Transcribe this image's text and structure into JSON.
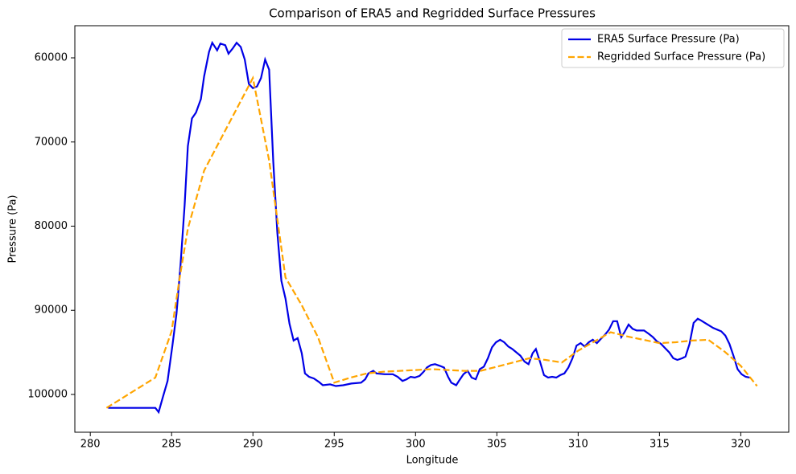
{
  "chart_data": {
    "type": "line",
    "title": "Comparison of ERA5 and Regridded Surface Pressures",
    "x_label": "Longitude",
    "y_label": "Pressure (Pa)",
    "xlim": [
      279.05,
      322.95
    ],
    "ylim": [
      104490,
      56180
    ],
    "xticks": [
      280,
      285,
      290,
      295,
      300,
      305,
      310,
      315,
      320
    ],
    "yticks": [
      60000,
      70000,
      80000,
      90000,
      100000
    ],
    "legend": "upper right",
    "series": [
      {
        "name": "ERA5 Surface Pressure (Pa)",
        "color": "#0000e6",
        "dash": "solid",
        "x": [
          281.1,
          282,
          283,
          284,
          284.2,
          284.45,
          284.75,
          285.05,
          285.3,
          285.55,
          285.8,
          286,
          286.25,
          286.5,
          286.8,
          287,
          287.3,
          287.5,
          287.8,
          288,
          288.3,
          288.5,
          288.75,
          289,
          289.25,
          289.5,
          289.75,
          290,
          290.25,
          290.5,
          290.75,
          291,
          291.25,
          291.5,
          291.75,
          292,
          292.25,
          292.5,
          292.75,
          293,
          293.2,
          293.45,
          293.75,
          294.05,
          294.3,
          294.75,
          295.1,
          295.55,
          296.05,
          296.65,
          296.9,
          297.1,
          297.4,
          297.6,
          298.1,
          298.6,
          298.9,
          299.2,
          299.45,
          299.7,
          299.95,
          300.25,
          300.5,
          300.7,
          300.95,
          301.2,
          301.5,
          301.75,
          302,
          302.2,
          302.5,
          302.7,
          302.95,
          303.2,
          303.45,
          303.7,
          303.95,
          304.2,
          304.45,
          304.7,
          304.95,
          305.2,
          305.45,
          305.7,
          305.95,
          306.2,
          306.45,
          306.7,
          306.95,
          307.2,
          307.4,
          307.65,
          307.9,
          308.15,
          308.4,
          308.65,
          308.9,
          309.15,
          309.4,
          309.65,
          309.9,
          310.15,
          310.4,
          310.65,
          310.9,
          311.15,
          311.4,
          311.65,
          311.9,
          312.15,
          312.4,
          312.65,
          312.85,
          313.1,
          313.35,
          313.6,
          314.05,
          314.35,
          314.6,
          314.85,
          315.1,
          315.35,
          315.6,
          315.85,
          316.1,
          316.4,
          316.6,
          316.85,
          317.1,
          317.35,
          317.55,
          317.8,
          318.05,
          318.3,
          318.55,
          318.8,
          319.05,
          319.3,
          319.55,
          319.8,
          320.05,
          320.3,
          320.55
        ],
        "values": [
          101600,
          101600,
          101600,
          101600,
          102100,
          100400,
          98400,
          94200,
          90400,
          84600,
          77500,
          70500,
          67200,
          66500,
          64900,
          62200,
          59300,
          58200,
          59100,
          58300,
          58500,
          59500,
          58900,
          58200,
          58700,
          60200,
          63100,
          63600,
          63400,
          62400,
          60200,
          61400,
          72300,
          80800,
          86500,
          88600,
          91600,
          93600,
          93300,
          95100,
          97500,
          97900,
          98100,
          98500,
          98900,
          98800,
          99000,
          98900,
          98700,
          98600,
          98200,
          97500,
          97200,
          97500,
          97600,
          97600,
          97900,
          98400,
          98200,
          97900,
          98000,
          97800,
          97300,
          96800,
          96500,
          96400,
          96600,
          96800,
          97900,
          98600,
          98900,
          98300,
          97600,
          97200,
          98000,
          98200,
          97000,
          96700,
          95700,
          94400,
          93800,
          93500,
          93800,
          94300,
          94600,
          95000,
          95400,
          96100,
          96400,
          95100,
          94600,
          96100,
          97700,
          98000,
          97900,
          98000,
          97700,
          97500,
          96800,
          95700,
          94200,
          93900,
          94300,
          93800,
          93500,
          93900,
          93400,
          92900,
          92300,
          91300,
          91300,
          93200,
          92600,
          91700,
          92200,
          92400,
          92400,
          92800,
          93200,
          93700,
          94000,
          94500,
          95000,
          95700,
          95900,
          95700,
          95500,
          94000,
          91500,
          91000,
          91200,
          91500,
          91800,
          92100,
          92300,
          92500,
          93000,
          94000,
          95400,
          97000,
          97600,
          97900,
          98000
        ]
      },
      {
        "name": "Regridded Surface Pressure (Pa)",
        "color": "#ffa500",
        "dash": "dashed",
        "x": [
          281,
          284,
          285,
          285.5,
          286,
          287,
          290,
          291,
          292,
          293,
          294,
          295,
          296,
          297,
          298,
          300,
          301,
          302,
          303,
          304,
          305,
          306,
          307,
          308,
          309,
          310,
          311,
          312,
          313,
          314,
          315,
          316,
          317,
          318,
          319,
          320,
          321
        ],
        "values": [
          101600,
          98000,
          92500,
          86100,
          80300,
          73400,
          62400,
          72200,
          86100,
          89400,
          93200,
          98600,
          98000,
          97500,
          97300,
          97100,
          97000,
          97100,
          97200,
          97200,
          96700,
          96200,
          95700,
          95900,
          96200,
          94800,
          93700,
          92600,
          93100,
          93500,
          93900,
          93800,
          93600,
          93500,
          94900,
          96600,
          99000
        ]
      }
    ]
  }
}
